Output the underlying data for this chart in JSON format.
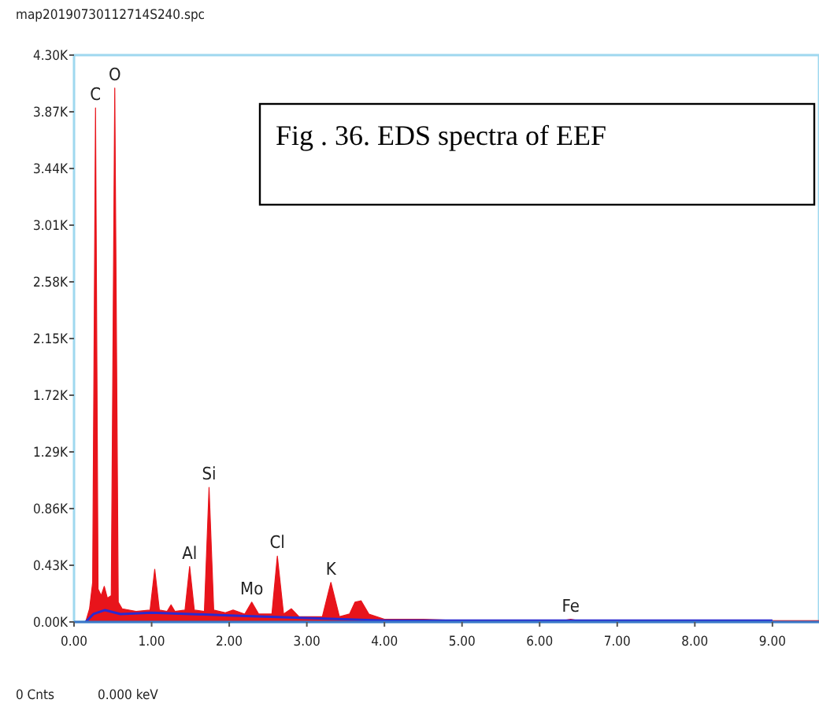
{
  "chart_data": {
    "type": "area",
    "title": "Fig . 36. EDS spectra of  EEF",
    "x": [
      0.0,
      0.15,
      0.2,
      0.24,
      0.277,
      0.31,
      0.35,
      0.39,
      0.43,
      0.48,
      0.525,
      0.57,
      0.62,
      0.8,
      0.98,
      1.04,
      1.1,
      1.2,
      1.25,
      1.3,
      1.43,
      1.49,
      1.55,
      1.68,
      1.74,
      1.8,
      1.95,
      2.05,
      2.2,
      2.29,
      2.38,
      2.55,
      2.62,
      2.7,
      2.8,
      2.9,
      3.2,
      3.31,
      3.42,
      3.55,
      3.62,
      3.7,
      3.8,
      4.0,
      4.5,
      5.0,
      6.3,
      6.4,
      6.5,
      7.0,
      7.06,
      7.1,
      8.0,
      9.0,
      9.6
    ],
    "series": [
      {
        "color": "#e8141b",
        "values": [
          0,
          0,
          100,
          300,
          3900,
          250,
          200,
          270,
          180,
          200,
          4050,
          150,
          100,
          80,
          90,
          400,
          90,
          80,
          130,
          80,
          90,
          420,
          90,
          80,
          1020,
          90,
          70,
          90,
          60,
          150,
          60,
          60,
          500,
          60,
          100,
          40,
          40,
          300,
          40,
          60,
          150,
          160,
          60,
          20,
          20,
          10,
          10,
          20,
          10,
          10,
          10,
          10,
          10,
          10,
          10
        ]
      },
      {
        "type": "line",
        "color": "#2a2ad0",
        "x": [
          0.15,
          0.25,
          0.4,
          0.6,
          1.0,
          2.0,
          3.0,
          4.0,
          5.0,
          7.0,
          9.0
        ],
        "values": [
          0,
          60,
          90,
          60,
          70,
          50,
          30,
          10,
          10,
          10,
          10
        ]
      }
    ],
    "xlim": [
      0,
      9.6
    ],
    "xticks": [
      {
        "value": 0,
        "label": "0.00"
      },
      {
        "value": 1,
        "label": "1.00"
      },
      {
        "value": 2,
        "label": "2.00"
      },
      {
        "value": 3,
        "label": "3.00"
      },
      {
        "value": 4,
        "label": "4.00"
      },
      {
        "value": 5,
        "label": "5.00"
      },
      {
        "value": 6,
        "label": "6.00"
      },
      {
        "value": 7,
        "label": "7.00"
      },
      {
        "value": 8,
        "label": "8.00"
      },
      {
        "value": 9,
        "label": "9.00"
      }
    ],
    "ylim": [
      0,
      4300
    ],
    "yticks": [
      {
        "value": 0,
        "label": "0.00K"
      },
      {
        "value": 430,
        "label": "0.43K"
      },
      {
        "value": 860,
        "label": "0.86K"
      },
      {
        "value": 1290,
        "label": "1.29K"
      },
      {
        "value": 1720,
        "label": "1.72K"
      },
      {
        "value": 2150,
        "label": "2.15K"
      },
      {
        "value": 2580,
        "label": "2.58K"
      },
      {
        "value": 3010,
        "label": "3.01K"
      },
      {
        "value": 3440,
        "label": "3.44K"
      },
      {
        "value": 3870,
        "label": "3.87K"
      },
      {
        "value": 4300,
        "label": "4.30K"
      }
    ],
    "annotations": [
      {
        "text": "C",
        "x": 0.277,
        "y": 3900
      },
      {
        "text": "O",
        "x": 0.525,
        "y": 4050
      },
      {
        "text": "Si",
        "x": 1.74,
        "y": 1020
      },
      {
        "text": "Al",
        "x": 1.49,
        "y": 420
      },
      {
        "text": "Mo",
        "x": 2.29,
        "y": 150
      },
      {
        "text": "Cl",
        "x": 2.62,
        "y": 500
      },
      {
        "text": "K",
        "x": 3.31,
        "y": 300
      },
      {
        "text": "Fe",
        "x": 6.4,
        "y": 20
      },
      "map20190730112714S240.spc",
      "0 Cnts",
      "0.000 keV"
    ]
  }
}
